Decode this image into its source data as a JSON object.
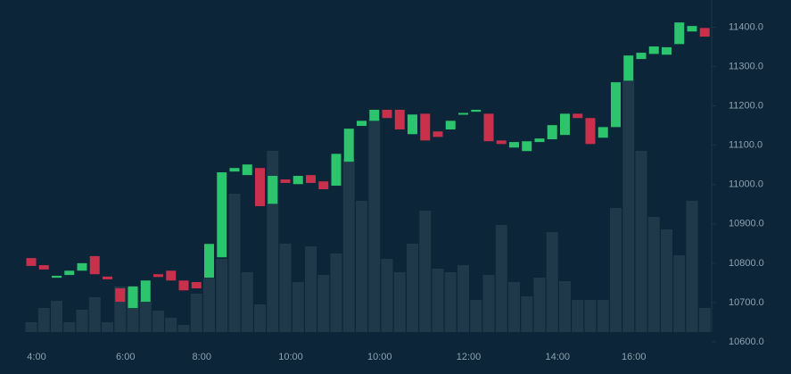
{
  "chart_data": {
    "type": "candlestick",
    "categories": [
      "4:00",
      null,
      null,
      null,
      null,
      null,
      null,
      "6:00",
      null,
      null,
      null,
      null,
      null,
      "8:00",
      null,
      null,
      null,
      null,
      null,
      null,
      "10:00",
      null,
      null,
      null,
      null,
      null,
      null,
      "10:00",
      null,
      null,
      null,
      null,
      null,
      null,
      "12:00",
      null,
      null,
      null,
      null,
      null,
      null,
      "14:00",
      null,
      null,
      null,
      null,
      null,
      "16:00",
      null,
      null,
      null,
      null,
      null,
      null
    ],
    "open": [
      10813,
      10795,
      10763,
      10770,
      10781,
      10818,
      10766,
      10736,
      10686,
      10702,
      10772,
      10781,
      10756,
      10752,
      10763,
      10815,
      11033,
      11024,
      11042,
      10951,
      11013,
      11001,
      11024,
      11008,
      10997,
      11058,
      11149,
      11162,
      11190,
      11190,
      11128,
      11180,
      11135,
      11140,
      11178,
      11185,
      11180,
      11112,
      11094,
      11085,
      11108,
      11115,
      11126,
      11180,
      11169,
      11119,
      11146,
      11264,
      11319,
      11332,
      11330,
      11357,
      11389,
      11398
    ],
    "close": [
      10793,
      10784,
      10768,
      10781,
      10800,
      10772,
      10759,
      10702,
      10741,
      10756,
      10765,
      10756,
      10731,
      10736,
      10849,
      11031,
      11042,
      11051,
      10945,
      11022,
      11004,
      11022,
      11004,
      10988,
      11078,
      11142,
      11162,
      11190,
      11169,
      11140,
      11178,
      11112,
      11121,
      11162,
      11182,
      11190,
      11110,
      11103,
      11108,
      11110,
      11117,
      11151,
      11180,
      11169,
      11103,
      11146,
      11260,
      11328,
      11335,
      11351,
      11349,
      11412,
      11403,
      11376
    ],
    "volume": [
      11,
      27,
      35,
      11,
      25,
      39,
      11,
      51,
      50,
      35,
      24,
      16,
      8,
      43,
      60,
      82,
      155,
      67,
      31,
      203,
      99,
      56,
      96,
      64,
      88,
      194,
      147,
      239,
      82,
      67,
      99,
      136,
      71,
      67,
      75,
      36,
      64,
      120,
      56,
      40,
      61,
      112,
      57,
      36,
      36,
      36,
      139,
      282,
      203,
      129,
      115,
      86,
      147,
      27
    ],
    "up_color": "#2cc46c",
    "down_color": "#c9304b",
    "volume_color": "#1f394a",
    "ylim": [
      10600,
      11460
    ],
    "yticks": [
      {
        "value": 10600,
        "label": "10600.0"
      },
      {
        "value": 10700,
        "label": "10700.0"
      },
      {
        "value": 10800,
        "label": "10800.0"
      },
      {
        "value": 10900,
        "label": "10900.0"
      },
      {
        "value": 11000,
        "label": "11000.0"
      },
      {
        "value": 11100,
        "label": "11100.0"
      },
      {
        "value": 11200,
        "label": "11200.0"
      },
      {
        "value": 11300,
        "label": "11300.0"
      },
      {
        "value": 11400,
        "label": "11400.0"
      }
    ],
    "grid": false
  }
}
